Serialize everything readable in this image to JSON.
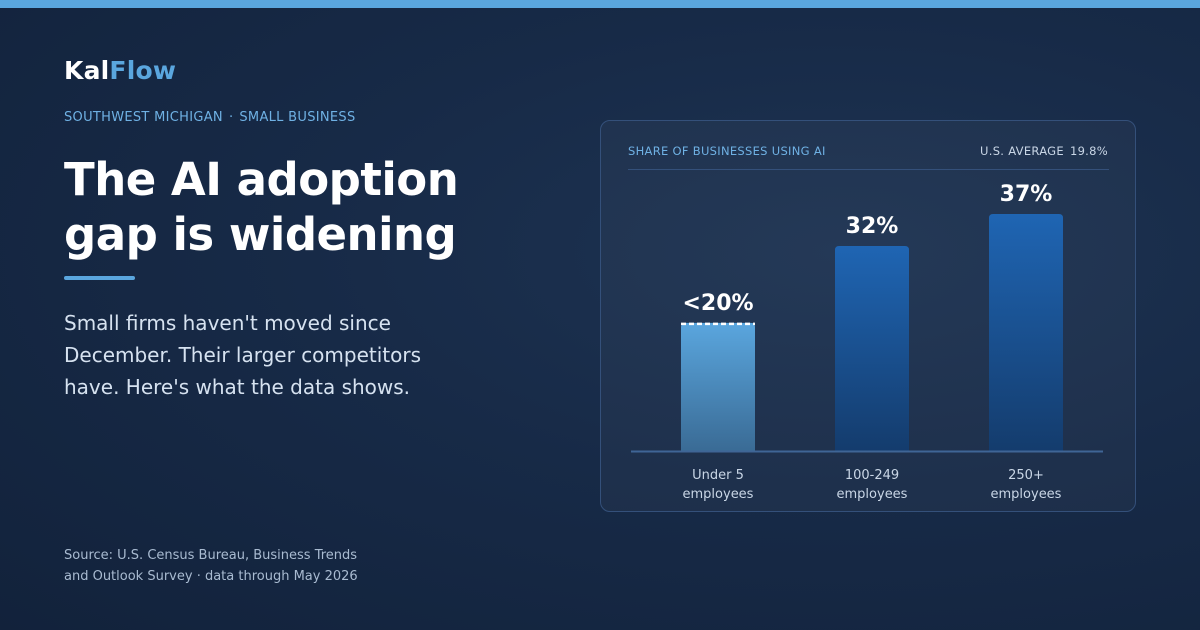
{
  "brand": {
    "part1": "Kal",
    "part2": "Flow"
  },
  "eyebrow": {
    "region": "SOUTHWEST MICHIGAN",
    "separator": "·",
    "segment": "SMALL BUSINESS"
  },
  "headline": "The AI adoption gap is widening",
  "subhead": "Small firms haven't moved since December. Their larger competitors have. Here's what the data shows.",
  "source": "Source: U.S. Census Bureau, Business Trends and Outlook Survey · data through May 2026",
  "colors": {
    "accent": "#5aa6de",
    "bar_light_top": "#5aa6de",
    "bar_light_bottom": "#3a6b95",
    "bar_dark_top": "#1f65b3",
    "bar_dark_bottom": "#143c6d"
  },
  "chart_data": {
    "type": "bar",
    "title": "SHARE OF BUSINESSES USING AI",
    "reference": {
      "label": "U.S. AVERAGE",
      "value_label": "19.8%",
      "value": 19.8
    },
    "categories": [
      {
        "line1": "Under 5",
        "line2": "employees"
      },
      {
        "line1": "100-249",
        "line2": "employees"
      },
      {
        "line1": "250+",
        "line2": "employees"
      }
    ],
    "values": [
      20,
      32,
      37
    ],
    "value_labels": [
      "<20%",
      "32%",
      "37%"
    ],
    "ylim": [
      0,
      37
    ],
    "grid": false
  }
}
